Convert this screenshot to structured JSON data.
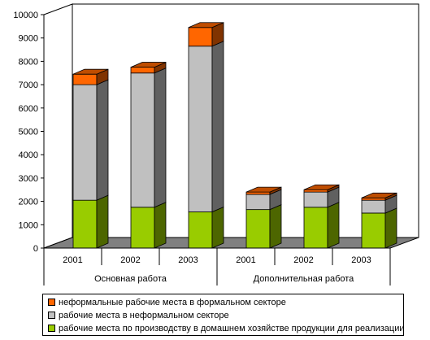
{
  "chart_data": {
    "type": "bar",
    "stacked": true,
    "three_d": true,
    "groups": [
      {
        "label": "Основная работа",
        "categories": [
          "2001",
          "2002",
          "2003"
        ]
      },
      {
        "label": "Дополнительная работа",
        "categories": [
          "2001",
          "2002",
          "2003"
        ]
      }
    ],
    "series": [
      {
        "name": "рабочие места по производству в домашнем хозяйстве продукции для реализации",
        "color": "#99cc00",
        "values": [
          2050,
          1750,
          1550,
          1650,
          1750,
          1500
        ]
      },
      {
        "name": "рабочие места в неформальном секторе",
        "color": "#c0c0c0",
        "values": [
          4950,
          5750,
          7100,
          650,
          650,
          550
        ]
      },
      {
        "name": "неформальные рабочие места в формальном секторе",
        "color": "#ff6600",
        "values": [
          450,
          250,
          800,
          100,
          100,
          100
        ]
      }
    ],
    "yticks": [
      "0",
      "1000",
      "2000",
      "3000",
      "4000",
      "5000",
      "6000",
      "7000",
      "8000",
      "9000",
      "10000"
    ],
    "ylim": [
      0,
      10000
    ],
    "grid": false,
    "legend_position": "bottom",
    "legend_order": [
      2,
      1,
      0
    ]
  }
}
